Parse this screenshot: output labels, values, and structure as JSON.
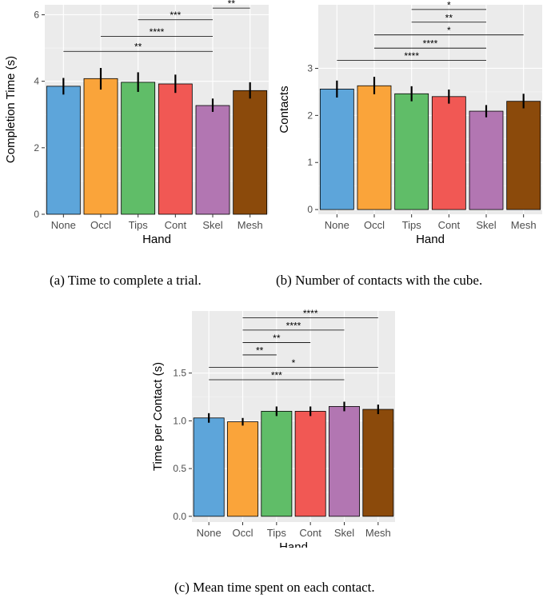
{
  "colors": {
    "None": "#5DA5DA",
    "Occl": "#FAA43A",
    "Tips": "#60BD68",
    "Cont": "#F15854",
    "Skel": "#B276B2",
    "Mesh": "#8B4A0B",
    "panel_bg": "#EBEBEB",
    "grid": "#FFFFFF"
  },
  "chart_data": [
    {
      "type": "bar",
      "title": "",
      "xlabel": "Hand",
      "ylabel": "Completion Time (s)",
      "categories": [
        "None",
        "Occl",
        "Tips",
        "Cont",
        "Skel",
        "Mesh"
      ],
      "values": [
        3.85,
        4.08,
        3.97,
        3.92,
        3.27,
        3.72
      ],
      "error_low": [
        3.6,
        3.75,
        3.68,
        3.65,
        3.08,
        3.48
      ],
      "error_high": [
        4.1,
        4.4,
        4.27,
        4.2,
        3.48,
        3.97
      ],
      "ylim": [
        0,
        6.3
      ],
      "yticks": [
        0,
        2,
        4,
        6
      ],
      "grid": true,
      "significance": [
        {
          "from": "Skel",
          "to": "Mesh",
          "label": "**",
          "y": 6.2
        },
        {
          "from": "Tips",
          "to": "Skel",
          "label": "***",
          "y": 5.85
        },
        {
          "from": "Occl",
          "to": "Skel",
          "label": "****",
          "y": 5.35
        },
        {
          "from": "None",
          "to": "Skel",
          "label": "**",
          "y": 4.9
        }
      ],
      "caption": "(a) Time to complete a trial."
    },
    {
      "type": "bar",
      "title": "",
      "xlabel": "Hand",
      "ylabel": "Contacts",
      "categories": [
        "None",
        "Occl",
        "Tips",
        "Cont",
        "Skel",
        "Mesh"
      ],
      "values": [
        2.56,
        2.63,
        2.46,
        2.4,
        2.09,
        2.3
      ],
      "error_low": [
        2.38,
        2.45,
        2.3,
        2.25,
        1.96,
        2.15
      ],
      "error_high": [
        2.74,
        2.82,
        2.62,
        2.55,
        2.22,
        2.46
      ],
      "ylim": [
        -0.1,
        4.35
      ],
      "yticks": [
        0,
        1,
        2,
        3
      ],
      "grid": true,
      "significance": [
        {
          "from": "Tips",
          "to": "Skel",
          "label": "*",
          "y": 4.25
        },
        {
          "from": "Tips",
          "to": "Skel",
          "label": "**",
          "y": 3.98
        },
        {
          "from": "Occl",
          "to": "Mesh",
          "label": "*",
          "y": 3.71
        },
        {
          "from": "Occl",
          "to": "Skel",
          "label": "****",
          "y": 3.43
        },
        {
          "from": "None",
          "to": "Skel",
          "label": "****",
          "y": 3.17
        }
      ],
      "caption": "(b) Number of contacts with the cube."
    },
    {
      "type": "bar",
      "title": "",
      "xlabel": "Hand",
      "ylabel": "Time per Contact (s)",
      "categories": [
        "None",
        "Occl",
        "Tips",
        "Cont",
        "Skel",
        "Mesh"
      ],
      "values": [
        1.03,
        0.99,
        1.1,
        1.1,
        1.15,
        1.12
      ],
      "error_low": [
        0.98,
        0.95,
        1.05,
        1.05,
        1.1,
        1.07
      ],
      "error_high": [
        1.08,
        1.03,
        1.15,
        1.15,
        1.2,
        1.17
      ],
      "ylim": [
        -0.06,
        2.15
      ],
      "yticks": [
        0.0,
        0.5,
        1.0,
        1.5
      ],
      "ytick_labels": [
        "0.0",
        "0.5",
        "1.0",
        "1.5"
      ],
      "grid": true,
      "significance": [
        {
          "from": "Occl",
          "to": "Mesh",
          "label": "****",
          "y": 2.08
        },
        {
          "from": "Occl",
          "to": "Skel",
          "label": "****",
          "y": 1.95
        },
        {
          "from": "Occl",
          "to": "Cont",
          "label": "**",
          "y": 1.82
        },
        {
          "from": "Occl",
          "to": "Tips",
          "label": "**",
          "y": 1.69
        },
        {
          "from": "None",
          "to": "Mesh",
          "label": "*",
          "y": 1.56
        },
        {
          "from": "None",
          "to": "Skel",
          "label": "***",
          "y": 1.43
        }
      ],
      "caption": "(c) Mean time spent on each contact."
    }
  ]
}
